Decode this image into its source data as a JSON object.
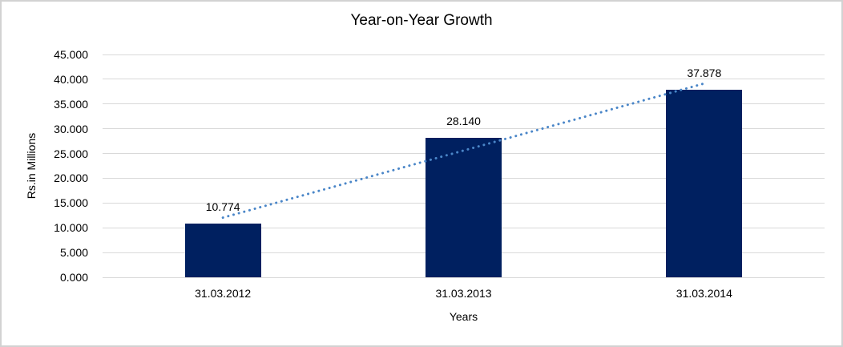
{
  "frame": {
    "background": "#ffffff",
    "border_color": "#d2d2d2"
  },
  "chart_data": {
    "type": "bar",
    "title": "Year-on-Year Growth",
    "xlabel": "Years",
    "ylabel": "Rs.in Millions",
    "categories": [
      "31.03.2012",
      "31.03.2013",
      "31.03.2014"
    ],
    "values": [
      10.774,
      28.14,
      37.878
    ],
    "value_labels": [
      "10.774",
      "28.140",
      "37.878"
    ],
    "ylim": [
      0,
      45
    ],
    "y_ticks": [
      {
        "value": 45,
        "label": "45.000"
      },
      {
        "value": 40,
        "label": "40.000"
      },
      {
        "value": 35,
        "label": "35.000"
      },
      {
        "value": 30,
        "label": "30.000"
      },
      {
        "value": 25,
        "label": "25.000"
      },
      {
        "value": 20,
        "label": "20.000"
      },
      {
        "value": 15,
        "label": "15.000"
      },
      {
        "value": 10,
        "label": "10.000"
      },
      {
        "value": 5,
        "label": "5.000"
      },
      {
        "value": 0,
        "label": "0.000"
      }
    ],
    "grid": true,
    "legend": "none",
    "data_label_position": "outside-end",
    "trendline": {
      "type": "linear",
      "style": "dotted"
    },
    "colors": {
      "bar": "#002060",
      "gridline": "#d9d9d9",
      "trendline": "#4a86c8",
      "text": "#000000"
    }
  }
}
